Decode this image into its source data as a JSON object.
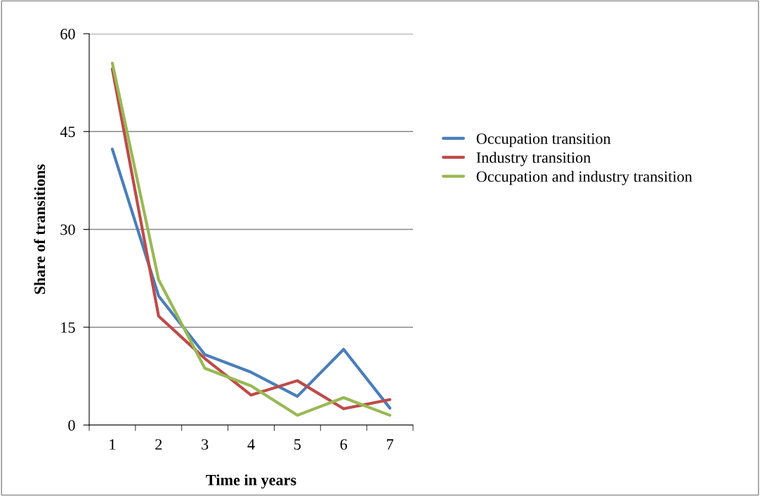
{
  "chart_data": {
    "type": "line",
    "xlabel": "Time in years",
    "ylabel": "Share of transitions",
    "categories": [
      "1",
      "2",
      "3",
      "4",
      "5",
      "6",
      "7"
    ],
    "series": [
      {
        "name": "Occupation transition",
        "color": "#4a7ebb",
        "values": [
          42.3,
          19.8,
          10.8,
          8.1,
          4.4,
          11.6,
          2.6
        ]
      },
      {
        "name": "Industry transition",
        "color": "#be4b48",
        "values": [
          54.6,
          16.7,
          10.2,
          4.6,
          6.8,
          2.5,
          3.9
        ]
      },
      {
        "name": "Occupation and industry transition",
        "color": "#98b954",
        "values": [
          55.5,
          22.3,
          8.7,
          6.0,
          1.5,
          4.2,
          1.5
        ]
      }
    ],
    "ylim": [
      0,
      60
    ],
    "yticks": [
      0,
      15,
      30,
      45,
      60
    ],
    "grid": "y",
    "legend": "right",
    "marker": "none",
    "line_style": "solid"
  }
}
